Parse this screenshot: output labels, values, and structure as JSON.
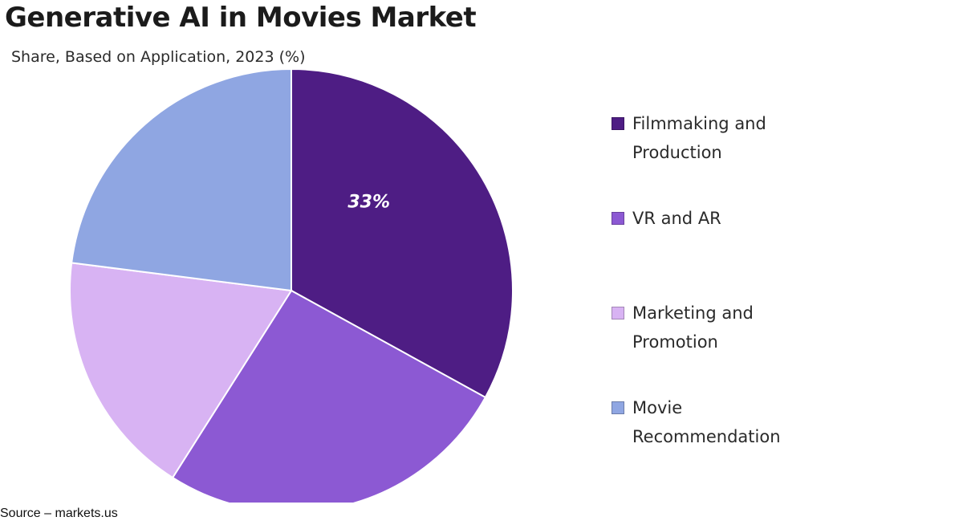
{
  "chart_data": {
    "type": "pie",
    "title": "Generative AI in Movies Market",
    "subtitle": "Share, Based on Application, 2023 (%)",
    "categories": [
      "Filmmaking and Production",
      "VR and AR",
      "Marketing and Promotion",
      "Movie Recommendation"
    ],
    "values": [
      33,
      26,
      18,
      23
    ],
    "data_labels": [
      "33%",
      "",
      "",
      ""
    ],
    "colors": [
      "#4e1d84",
      "#8c59d3",
      "#d8b3f3",
      "#8fa6e2"
    ],
    "legend_position": "right",
    "start_angle_deg": 0,
    "direction": "clockwise"
  },
  "source": "Source – markets.us"
}
